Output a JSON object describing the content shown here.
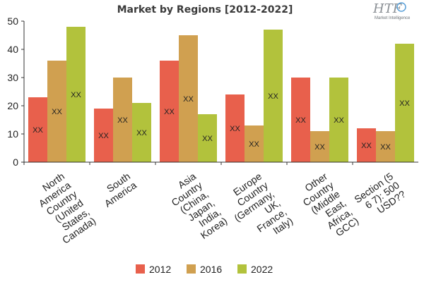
{
  "logo": {
    "mark": "HTF",
    "sub": "Market Intelligence"
  },
  "chart_data": {
    "type": "bar",
    "title": "Market by Regions [2012-2022]",
    "categories": [
      [
        "North",
        "America",
        "Country",
        "(United",
        "States,",
        "Canada)"
      ],
      [
        "South",
        "America"
      ],
      [
        "Asia",
        "Country",
        "(China,",
        "Japan,",
        "India,",
        "Korea)"
      ],
      [
        "Europe",
        "Country",
        "(Germany,",
        "UK,",
        "France,",
        "Italy)"
      ],
      [
        "Other",
        "Country",
        "(Middle",
        "East,",
        "Africa,",
        "GCC)"
      ],
      [
        "Section (5",
        "6 7): 500",
        "USD??"
      ]
    ],
    "series": [
      {
        "name": "2012",
        "color": "#e8604c",
        "values": [
          23,
          19,
          36,
          24,
          30,
          12
        ],
        "labels": [
          "XX",
          "XX",
          "XX",
          "XX",
          "XX",
          "XX"
        ]
      },
      {
        "name": "2016",
        "color": "#d0a050",
        "values": [
          36,
          30,
          45,
          13,
          11,
          11
        ],
        "labels": [
          "XX",
          "XX",
          "XX",
          "XX",
          "XX",
          "XX"
        ]
      },
      {
        "name": "2022",
        "color": "#b2c23c",
        "values": [
          48,
          21,
          17,
          47,
          30,
          42
        ],
        "labels": [
          "XX",
          "XX",
          "XX",
          "XX",
          "XX",
          "XX"
        ]
      }
    ],
    "ylim": [
      0,
      50
    ],
    "yticks": [
      0,
      10,
      20,
      30,
      40,
      50
    ],
    "legend_position": "bottom",
    "grid": false
  }
}
